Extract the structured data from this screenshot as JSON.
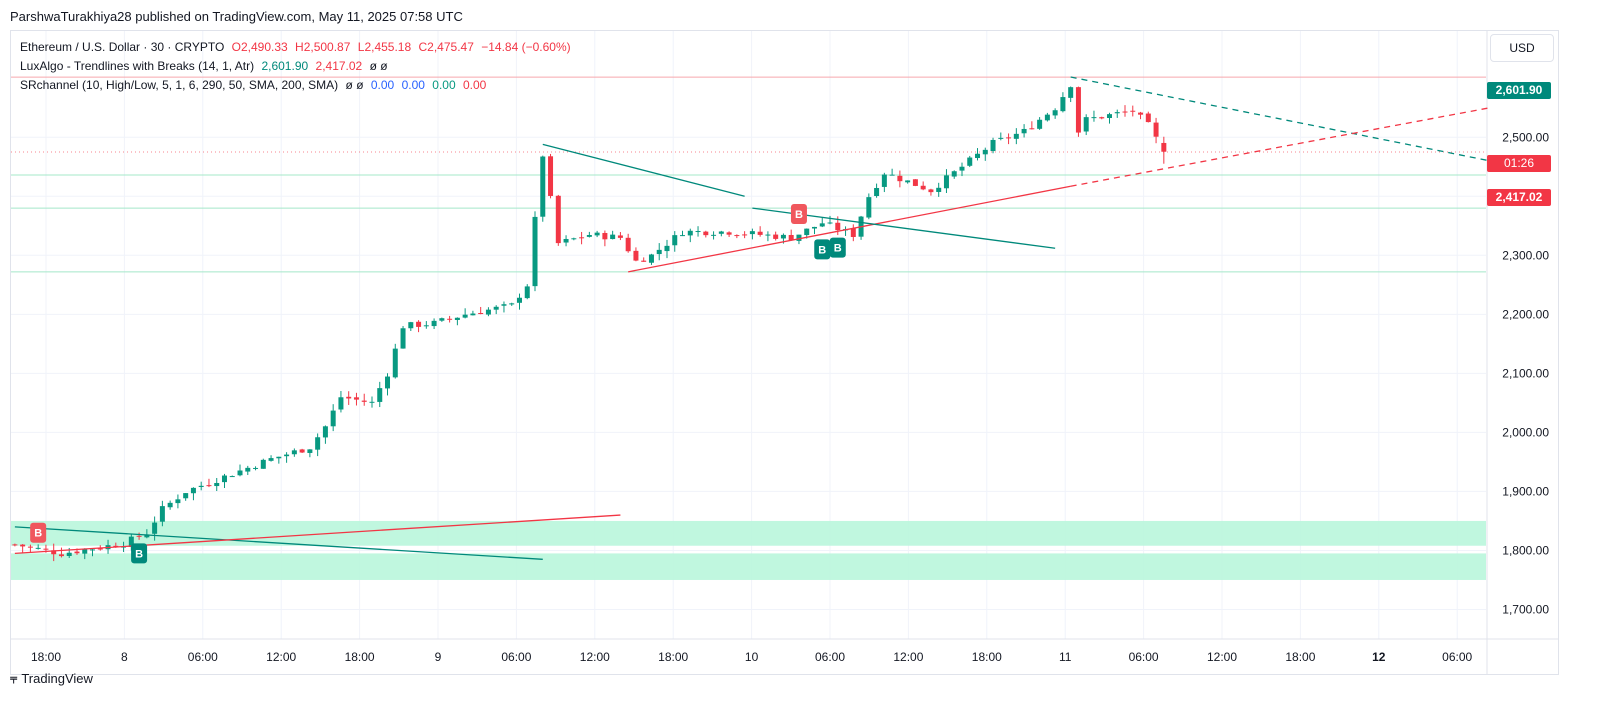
{
  "publish_line": "ParshwaTurakhiya28 published on TradingView.com, May 11, 2025 07:58 UTC",
  "legend": {
    "symbol": "Ethereum / U.S. Dollar · 30 · CRYPTO",
    "open": "O2,490.33",
    "high": "H2,500.87",
    "low": "L2,455.18",
    "close": "C2,475.47",
    "change": "−14.84 (−0.60%)",
    "indicator1_name": "LuxAlgo - Trendlines with Breaks (14, 1, Atr)",
    "indicator1_v1": "2,601.90",
    "indicator1_v2": "2,417.02",
    "indicator1_extra": "ø ø",
    "indicator2_name": "SRchannel (10, High/Low, 5, 1, 6, 290, 50, SMA, 200, SMA)",
    "indicator2_extra": "ø ø",
    "indicator2_v1": "0.00",
    "indicator2_v2": "0.00",
    "indicator2_v3": "0.00",
    "indicator2_v4": "0.00"
  },
  "currency": "USD",
  "price_tags": {
    "high": "2,601.90",
    "countdown": "01:26",
    "low": "2,417.02"
  },
  "footer": {
    "logo": "TradingView"
  },
  "colors": {
    "up": "#089981",
    "down": "#f23645",
    "zone": "#b9f6dc",
    "trend_teal": "#00897b",
    "trend_red": "#f23645"
  },
  "chart_data": {
    "type": "candlestick",
    "instrument": "Ethereum / U.S. Dollar",
    "timeframe": "30",
    "ylim": [
      1650,
      2680
    ],
    "y_ticks": [
      1700,
      1800,
      1900,
      2000,
      2100,
      2200,
      2300,
      2400,
      2500
    ],
    "y_tick_labels": [
      "1,700.00",
      "1,800.00",
      "1,900.00",
      "2,000.00",
      "2,100.00",
      "2,200.00",
      "2,300.00",
      "2,400.00",
      "2,500.00"
    ],
    "x_tick_labels": [
      "18:00",
      "8",
      "06:00",
      "12:00",
      "18:00",
      "9",
      "06:00",
      "12:00",
      "18:00",
      "10",
      "06:00",
      "12:00",
      "18:00",
      "11",
      "06:00",
      "12:00",
      "18:00",
      "12",
      "06:00"
    ],
    "bold_x_ticks": [
      "12"
    ],
    "bars_total": 190,
    "candle_close_path": [
      [
        0,
        1810
      ],
      [
        6,
        1795
      ],
      [
        14,
        1812
      ],
      [
        17,
        1830
      ],
      [
        19,
        1870
      ],
      [
        22,
        1900
      ],
      [
        28,
        1930
      ],
      [
        33,
        1955
      ],
      [
        38,
        1975
      ],
      [
        40,
        2010
      ],
      [
        42,
        2060
      ],
      [
        46,
        2050
      ],
      [
        48,
        2100
      ],
      [
        50,
        2180
      ],
      [
        54,
        2185
      ],
      [
        58,
        2200
      ],
      [
        64,
        2215
      ],
      [
        66,
        2250
      ],
      [
        68,
        2470
      ],
      [
        70,
        2320
      ],
      [
        74,
        2335
      ],
      [
        78,
        2330
      ],
      [
        80,
        2290
      ],
      [
        82,
        2300
      ],
      [
        86,
        2340
      ],
      [
        92,
        2340
      ],
      [
        100,
        2330
      ],
      [
        104,
        2355
      ],
      [
        108,
        2335
      ],
      [
        110,
        2400
      ],
      [
        112,
        2440
      ],
      [
        118,
        2410
      ],
      [
        122,
        2450
      ],
      [
        126,
        2490
      ],
      [
        130,
        2510
      ],
      [
        134,
        2550
      ],
      [
        136,
        2590
      ],
      [
        137,
        2510
      ],
      [
        138,
        2530
      ],
      [
        144,
        2545
      ],
      [
        146,
        2520
      ],
      [
        148,
        2475
      ]
    ],
    "last_candle": {
      "open": 2490.33,
      "high": 2500.87,
      "low": 2455.18,
      "close": 2475.47
    },
    "horizontal_levels": [
      2601.9,
      2475,
      2436,
      2380,
      2272
    ],
    "support_zones": [
      [
        1808,
        1850
      ],
      [
        1750,
        1795
      ]
    ],
    "trendlines": [
      {
        "color": "teal",
        "style": "solid",
        "from": [
          0,
          1840
        ],
        "to": [
          68,
          1785
        ]
      },
      {
        "color": "red",
        "style": "solid",
        "from": [
          0,
          1795
        ],
        "to": [
          78,
          1860
        ]
      },
      {
        "color": "teal",
        "style": "solid",
        "from": [
          68,
          2488
        ],
        "to": [
          94,
          2400
        ]
      },
      {
        "color": "red",
        "style": "solid",
        "from": [
          79,
          2272
        ],
        "to": [
          136,
          2417
        ]
      },
      {
        "color": "teal",
        "style": "solid",
        "from": [
          95,
          2380
        ],
        "to": [
          134,
          2312
        ]
      },
      {
        "color": "teal",
        "style": "dashed",
        "from": [
          136,
          2602
        ],
        "to": [
          190,
          2460
        ]
      },
      {
        "color": "red",
        "style": "dashed",
        "from": [
          136,
          2417
        ],
        "to": [
          190,
          2550
        ]
      }
    ],
    "break_labels": [
      {
        "text": "B",
        "bar": 3,
        "price": 1830,
        "color": "red"
      },
      {
        "text": "B",
        "bar": 16,
        "price": 1795,
        "color": "teal"
      },
      {
        "text": "B",
        "bar": 101,
        "price": 2370,
        "color": "red"
      },
      {
        "text": "B",
        "bar": 104,
        "price": 2310,
        "color": "teal"
      },
      {
        "text": "B",
        "bar": 106,
        "price": 2313,
        "color": "teal"
      }
    ]
  }
}
